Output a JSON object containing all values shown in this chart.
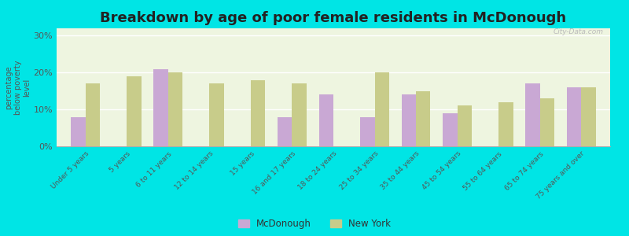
{
  "title": "Breakdown by age of poor female residents in McDonough",
  "ylabel": "percentage\nbelow poverty\nlevel",
  "categories": [
    "Under 5 years",
    "5 years",
    "6 to 11 years",
    "12 to 14 years",
    "15 years",
    "16 and 17 years",
    "18 to 24 years",
    "25 to 34 years",
    "35 to 44 years",
    "45 to 54 years",
    "55 to 64 years",
    "65 to 74 years",
    "75 years and over"
  ],
  "mcdonough": [
    8.0,
    0,
    21.0,
    0,
    0,
    8.0,
    14.0,
    8.0,
    14.0,
    9.0,
    0,
    17.0,
    16.0
  ],
  "new_york": [
    17.0,
    19.0,
    20.0,
    17.0,
    18.0,
    17.0,
    0,
    20.0,
    15.0,
    11.0,
    12.0,
    13.0,
    16.0
  ],
  "mcdonough_color": "#c9a8d4",
  "new_york_color": "#c8cc8a",
  "plot_bg": "#eef5e0",
  "outer_bg": "#00e5e5",
  "ylim": [
    0,
    32
  ],
  "yticks": [
    0,
    10,
    20,
    30
  ],
  "ytick_labels": [
    "0%",
    "10%",
    "20%",
    "30%"
  ],
  "bar_width": 0.35,
  "title_fontsize": 13,
  "legend_mcdonough": "McDonough",
  "legend_new_york": "New York"
}
